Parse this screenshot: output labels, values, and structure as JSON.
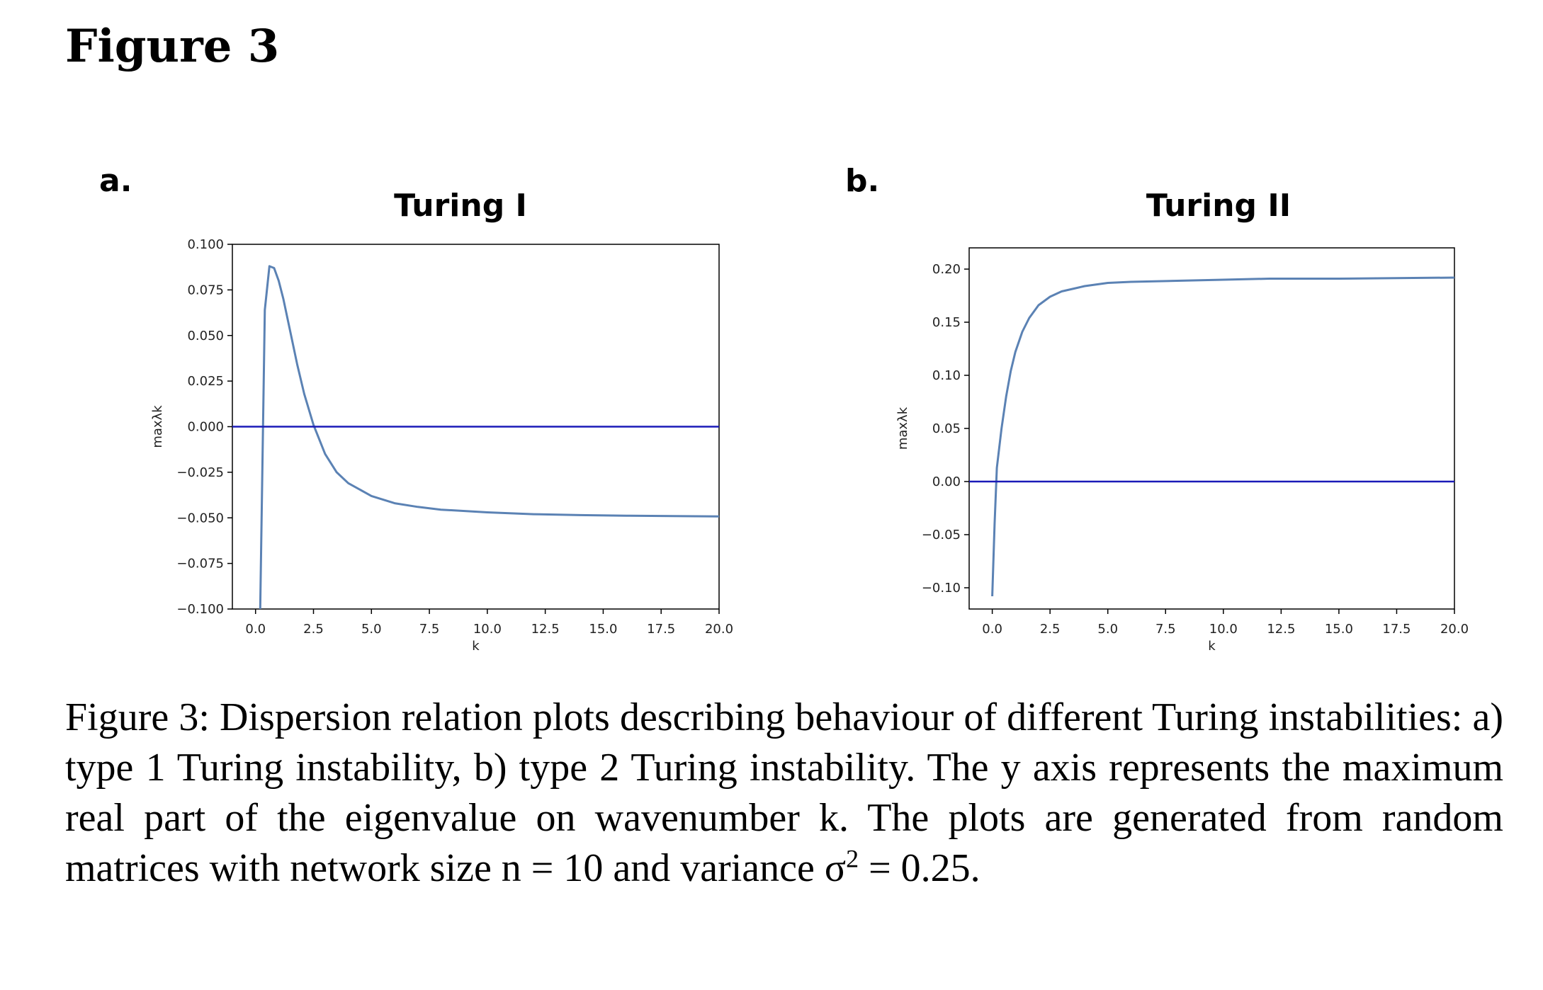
{
  "figure_title": "Figure 3",
  "panels": [
    {
      "label": "a."
    },
    {
      "label": "b."
    }
  ],
  "caption": {
    "text": "Figure 3: Dispersion relation plots describing behaviour of different Turing instabilities: a) type 1 Turing instability, b) type 2 Turing instability. The y axis represents the maximum real part of the eigenvalue on wavenumber k. The plots are generated from random matrices with network size n = 10 and variance σ",
    "superscript": "2",
    "tail": " = 0.25."
  },
  "colors": {
    "curve": "#5b82b4",
    "zero_line": "#1a1ab8",
    "axes": "#000000"
  },
  "chart_data": [
    {
      "type": "line",
      "title": "Turing I",
      "xlabel": "k",
      "ylabel": "maxλk",
      "xlim": [
        -1,
        20
      ],
      "ylim": [
        -0.1,
        0.1
      ],
      "xticks": [
        "0.0",
        "2.5",
        "5.0",
        "7.5",
        "10.0",
        "12.5",
        "15.0",
        "17.5",
        "20.0"
      ],
      "yticks": [
        "0.100",
        "0.075",
        "0.050",
        "0.025",
        "0.000",
        "−0.025",
        "−0.050",
        "−0.075",
        "−0.100"
      ],
      "grid": false,
      "series": [
        {
          "x": [
            0.2,
            0.4,
            0.6,
            0.8,
            1.0,
            1.2,
            1.5,
            1.8,
            2.1,
            2.5,
            3.0,
            3.5,
            4.0,
            5.0,
            6.0,
            7.0,
            8.0,
            10.0,
            12.0,
            14.0,
            16.0,
            18.0,
            20.0
          ],
          "y": [
            -0.1,
            0.064,
            0.088,
            0.087,
            0.08,
            0.07,
            0.052,
            0.034,
            0.018,
            0.001,
            -0.015,
            -0.025,
            -0.031,
            -0.038,
            -0.042,
            -0.044,
            -0.0455,
            -0.047,
            -0.048,
            -0.0485,
            -0.0488,
            -0.049,
            -0.0492
          ]
        },
        {
          "x": [
            -1,
            20
          ],
          "y": [
            0,
            0
          ]
        }
      ]
    },
    {
      "type": "line",
      "title": "Turing II",
      "xlabel": "k",
      "ylabel": "maxλk",
      "xlim": [
        -1,
        20
      ],
      "ylim": [
        -0.12,
        0.22
      ],
      "xticks": [
        "0.0",
        "2.5",
        "5.0",
        "7.5",
        "10.0",
        "12.5",
        "15.0",
        "17.5",
        "20.0"
      ],
      "yticks": [
        "0.20",
        "0.15",
        "0.10",
        "0.05",
        "0.00",
        "−0.05",
        "−0.10"
      ],
      "grid": false,
      "series": [
        {
          "x": [
            0.0,
            0.1,
            0.2,
            0.4,
            0.6,
            0.8,
            1.0,
            1.3,
            1.6,
            2.0,
            2.5,
            3.0,
            4.0,
            5.0,
            6.0,
            8.0,
            10.0,
            12.0,
            15.0,
            20.0
          ],
          "y": [
            -0.108,
            -0.04,
            0.013,
            0.05,
            0.08,
            0.104,
            0.122,
            0.141,
            0.154,
            0.166,
            0.174,
            0.179,
            0.184,
            0.187,
            0.188,
            0.189,
            0.19,
            0.191,
            0.191,
            0.192
          ]
        },
        {
          "x": [
            -1,
            20
          ],
          "y": [
            0,
            0
          ]
        }
      ]
    }
  ]
}
